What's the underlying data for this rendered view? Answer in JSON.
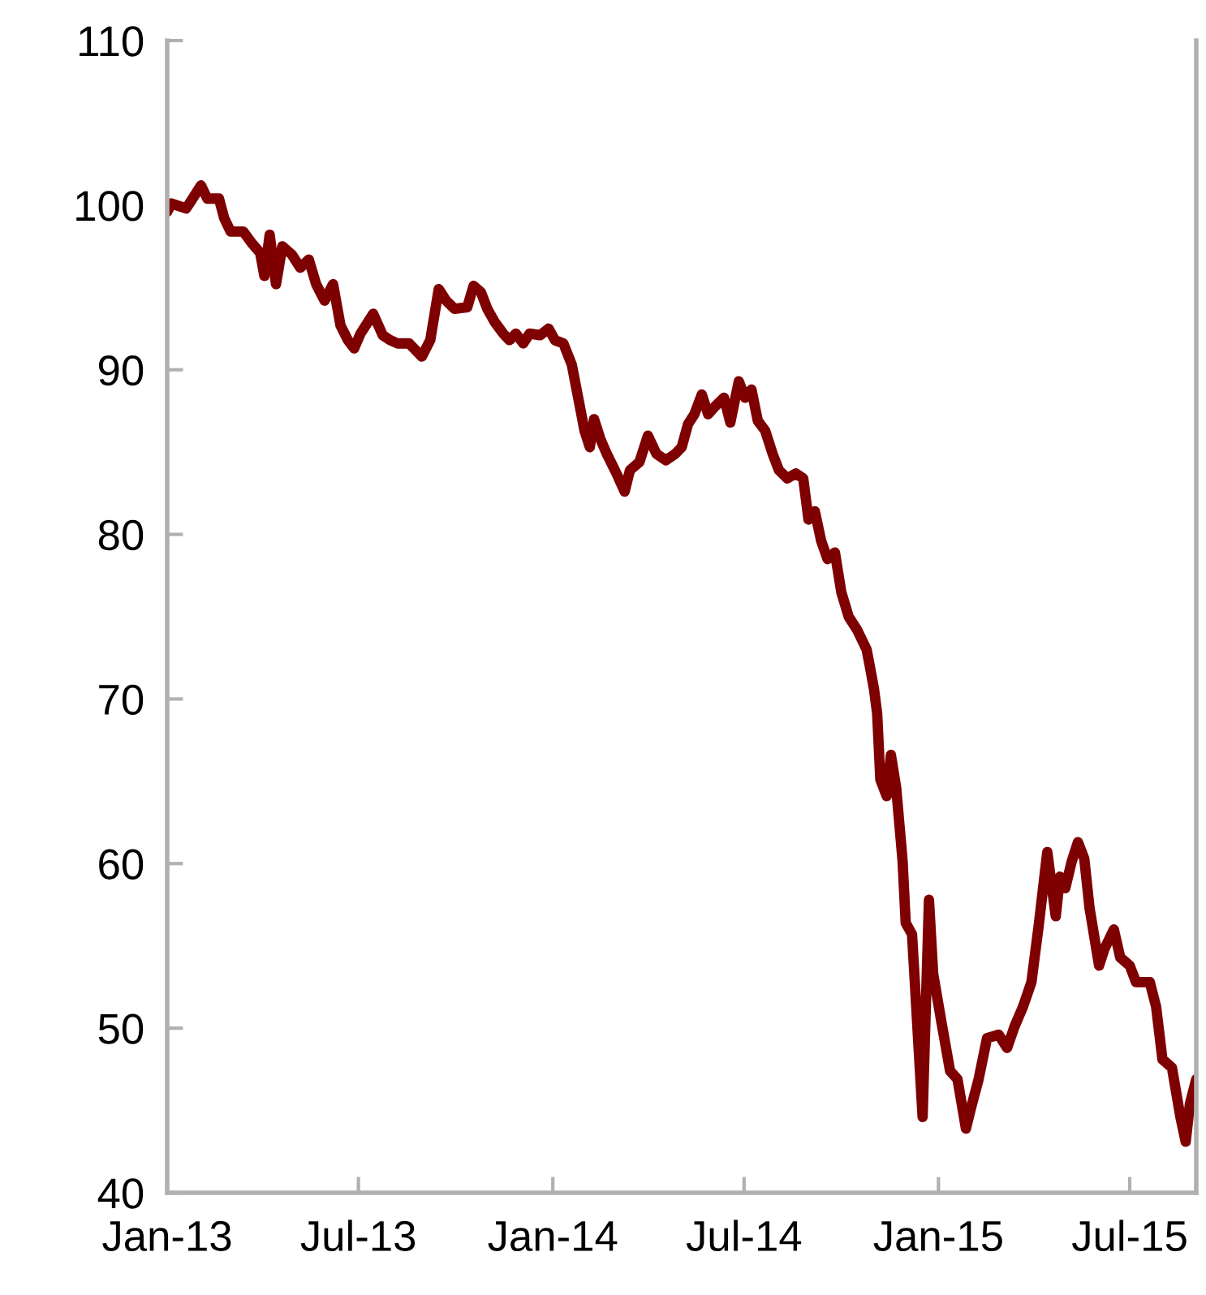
{
  "chart_data": {
    "type": "line",
    "x": [
      "2013-01-01",
      "2013-01-05",
      "2013-01-19",
      "2013-01-27",
      "2013-02-02",
      "2013-02-08",
      "2013-02-19",
      "2013-02-24",
      "2013-03-02",
      "2013-03-14",
      "2013-03-22",
      "2013-03-30",
      "2013-04-03",
      "2013-04-08",
      "2013-04-14",
      "2013-04-20",
      "2013-04-29",
      "2013-05-07",
      "2013-05-15",
      "2013-05-22",
      "2013-05-30",
      "2013-06-07",
      "2013-06-14",
      "2013-06-21",
      "2013-06-27",
      "2013-07-03",
      "2013-07-15",
      "2013-07-24",
      "2013-07-31",
      "2013-08-07",
      "2013-08-18",
      "2013-08-30",
      "2013-09-07",
      "2013-09-15",
      "2013-09-22",
      "2013-09-30",
      "2013-10-12",
      "2013-10-18",
      "2013-10-25",
      "2013-10-31",
      "2013-11-07",
      "2013-11-15",
      "2013-11-21",
      "2013-11-27",
      "2013-12-04",
      "2013-12-10",
      "2013-12-20",
      "2013-12-28",
      "2014-01-03",
      "2014-01-11",
      "2014-01-19",
      "2014-01-25",
      "2014-01-31",
      "2014-02-05",
      "2014-02-09",
      "2014-02-15",
      "2014-02-21",
      "2014-03-03",
      "2014-03-10",
      "2014-03-15",
      "2014-03-24",
      "2014-04-01",
      "2014-04-09",
      "2014-04-18",
      "2014-04-27",
      "2014-05-03",
      "2014-05-09",
      "2014-05-15",
      "2014-05-22",
      "2014-05-28",
      "2014-06-04",
      "2014-06-12",
      "2014-06-18",
      "2014-06-26",
      "2014-07-02",
      "2014-07-08",
      "2014-07-14",
      "2014-07-21",
      "2014-07-28",
      "2014-08-03",
      "2014-08-11",
      "2014-08-19",
      "2014-08-26",
      "2014-08-31",
      "2014-09-06",
      "2014-09-12",
      "2014-09-18",
      "2014-09-25",
      "2014-10-01",
      "2014-10-08",
      "2014-10-16",
      "2014-10-25",
      "2014-10-28",
      "2014-11-01",
      "2014-11-04",
      "2014-11-07",
      "2014-11-13",
      "2014-11-17",
      "2014-11-22",
      "2014-11-28",
      "2014-12-01",
      "2014-12-07",
      "2014-12-17",
      "2014-12-23",
      "2014-12-27",
      "2015-01-04",
      "2015-01-12",
      "2015-01-19",
      "2015-01-27",
      "2015-02-01",
      "2015-02-08",
      "2015-02-16",
      "2015-02-27",
      "2015-03-07",
      "2015-03-14",
      "2015-03-22",
      "2015-03-30",
      "2015-04-06",
      "2015-04-14",
      "2015-04-22",
      "2015-04-26",
      "2015-05-01",
      "2015-05-07",
      "2015-05-13",
      "2015-05-19",
      "2015-05-24",
      "2015-06-02",
      "2015-06-07",
      "2015-06-16",
      "2015-06-22",
      "2015-07-01",
      "2015-07-07",
      "2015-07-20",
      "2015-07-26",
      "2015-08-01",
      "2015-08-10",
      "2015-08-18",
      "2015-08-23",
      "2015-08-27",
      "2015-09-02"
    ],
    "series": [
      {
        "color": "#7f0000",
        "values": [
          99.6,
          100.1,
          99.8,
          100.6,
          101.2,
          100.4,
          100.4,
          99.2,
          98.4,
          98.4,
          97.7,
          97.1,
          95.7,
          98.2,
          95.2,
          97.5,
          97.0,
          96.2,
          96.7,
          95.2,
          94.2,
          95.2,
          92.7,
          91.8,
          91.3,
          92.2,
          93.4,
          92.1,
          91.8,
          91.6,
          91.6,
          90.8,
          91.8,
          94.9,
          94.2,
          93.7,
          93.8,
          95.1,
          94.7,
          93.7,
          92.9,
          92.2,
          91.8,
          92.2,
          91.6,
          92.2,
          92.1,
          92.5,
          91.8,
          91.6,
          90.3,
          88.3,
          86.3,
          85.3,
          87.0,
          85.8,
          84.9,
          83.6,
          82.6,
          83.9,
          84.4,
          86.0,
          84.9,
          84.5,
          84.9,
          85.3,
          86.7,
          87.3,
          88.5,
          87.3,
          87.8,
          88.3,
          86.8,
          89.3,
          88.3,
          88.8,
          86.9,
          86.3,
          84.9,
          83.9,
          83.4,
          83.7,
          83.4,
          80.9,
          81.4,
          79.6,
          78.5,
          78.9,
          76.5,
          75.0,
          74.2,
          73.0,
          72.0,
          70.6,
          69.1,
          65.1,
          64.1,
          66.6,
          64.6,
          60.2,
          56.4,
          55.7,
          44.6,
          57.8,
          53.3,
          50.3,
          47.4,
          46.9,
          43.9,
          45.2,
          46.9,
          49.4,
          49.6,
          48.8,
          50.1,
          51.3,
          52.8,
          56.3,
          60.7,
          56.8,
          59.2,
          58.5,
          60.1,
          61.3,
          60.3,
          57.3,
          53.8,
          54.8,
          56.0,
          54.3,
          53.8,
          52.8,
          52.8,
          51.3,
          48.1,
          47.6,
          44.6,
          43.1,
          45.4,
          46.9
        ]
      }
    ],
    "xlim": [
      "2013-01-01",
      "2015-09-02"
    ],
    "xticks": [
      {
        "value": "2013-01-01",
        "label": "Jan-13"
      },
      {
        "value": "2013-07-01",
        "label": "Jul-13"
      },
      {
        "value": "2014-01-01",
        "label": "Jan-14"
      },
      {
        "value": "2014-07-01",
        "label": "Jul-14"
      },
      {
        "value": "2015-01-01",
        "label": "Jan-15"
      },
      {
        "value": "2015-07-01",
        "label": "Jul-15"
      }
    ],
    "ylim": [
      40,
      110
    ],
    "yticks": [
      40,
      50,
      60,
      70,
      80,
      90,
      100,
      110
    ],
    "grid": false,
    "legend": false,
    "marker": "none",
    "line_style": "solid"
  }
}
